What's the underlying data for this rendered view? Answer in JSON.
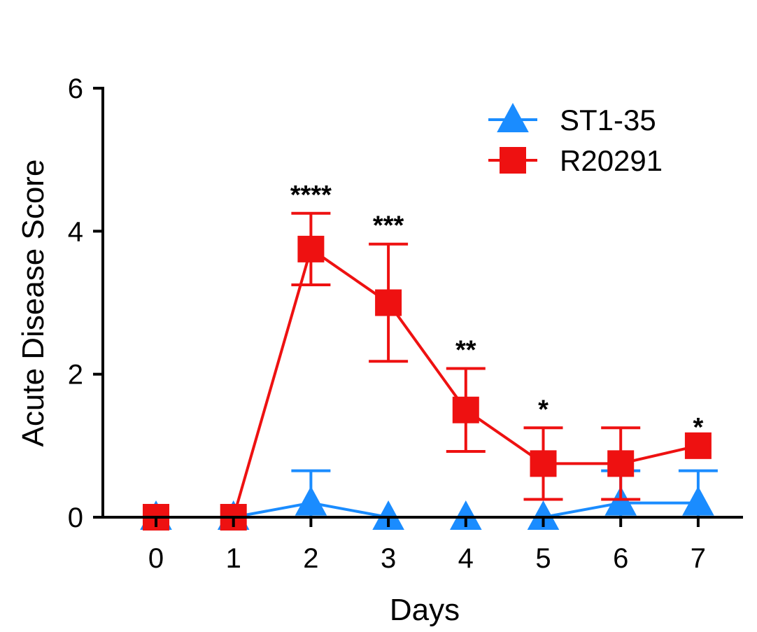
{
  "chart_data": {
    "type": "line",
    "title": "",
    "xlabel": "Days",
    "ylabel": "Acute Disease Score",
    "x": [
      0,
      1,
      2,
      3,
      4,
      5,
      6,
      7
    ],
    "xlim": [
      -0.8,
      7.6
    ],
    "ylim": [
      0,
      6
    ],
    "x_ticks": [
      "0",
      "1",
      "2",
      "3",
      "4",
      "5",
      "6",
      "7"
    ],
    "y_ticks": [
      "0",
      "2",
      "4",
      "6"
    ],
    "legend_position": "top-right",
    "series": [
      {
        "name": "ST1-35",
        "color": "#1a8cff",
        "marker": "triangle",
        "values": [
          0,
          0,
          0.2,
          0,
          0,
          0,
          0.2,
          0.2
        ],
        "error": [
          0,
          0,
          0.45,
          0,
          0,
          0,
          0.45,
          0.45
        ]
      },
      {
        "name": "R20291",
        "color": "#ee1111",
        "marker": "square",
        "values": [
          0,
          0,
          3.75,
          3.0,
          1.5,
          0.75,
          0.75,
          1.0
        ],
        "error": [
          0,
          0,
          0.5,
          0.82,
          0.58,
          0.5,
          0.5,
          0
        ]
      }
    ],
    "annotations": [
      {
        "x": 2,
        "text": "****",
        "above": 4.25
      },
      {
        "x": 3,
        "text": "***",
        "above": 3.82
      },
      {
        "x": 4,
        "text": "**",
        "above": 2.08
      },
      {
        "x": 5,
        "text": "*",
        "above": 1.25
      },
      {
        "x": 7,
        "text": "*",
        "above": 1.0
      }
    ]
  }
}
